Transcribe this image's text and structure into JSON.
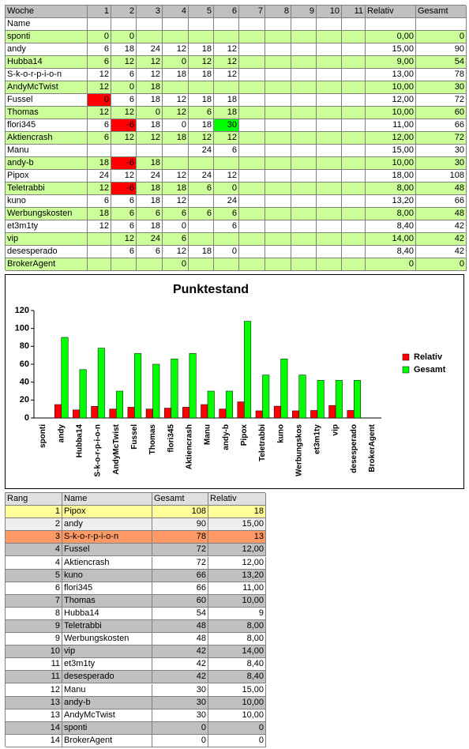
{
  "scores_table": {
    "header": [
      "Woche",
      1,
      2,
      3,
      4,
      5,
      6,
      7,
      8,
      9,
      10,
      11,
      "Relativ",
      "Gesamt"
    ],
    "subheader": "Name",
    "stripe_colors": [
      "#ccff99",
      "#ffffff"
    ],
    "rows": [
      [
        "sponti",
        0,
        0,
        null,
        null,
        null,
        null,
        null,
        null,
        null,
        null,
        null,
        "0,00",
        0
      ],
      [
        "andy",
        6,
        18,
        24,
        12,
        18,
        12,
        null,
        null,
        null,
        null,
        null,
        "15,00",
        90
      ],
      [
        "Hubba14",
        6,
        12,
        12,
        0,
        12,
        12,
        null,
        null,
        null,
        null,
        null,
        "9,00",
        54
      ],
      [
        "S-k-o-r-p-i-o-n",
        12,
        6,
        12,
        18,
        18,
        12,
        null,
        null,
        null,
        null,
        null,
        "13,00",
        78
      ],
      [
        "AndyMcTwist",
        12,
        0,
        18,
        null,
        null,
        null,
        null,
        null,
        null,
        null,
        null,
        "10,00",
        30
      ],
      [
        "Fussel",
        0,
        6,
        18,
        12,
        18,
        18,
        null,
        null,
        null,
        null,
        null,
        "12,00",
        72
      ],
      [
        "Thomas",
        12,
        12,
        0,
        12,
        6,
        18,
        null,
        null,
        null,
        null,
        null,
        "10,00",
        60
      ],
      [
        "flori345",
        6,
        -6,
        18,
        0,
        18,
        30,
        null,
        null,
        null,
        null,
        null,
        "11,00",
        66
      ],
      [
        "Aktiencrash",
        6,
        12,
        12,
        18,
        12,
        12,
        null,
        null,
        null,
        null,
        null,
        "12,00",
        72
      ],
      [
        "Manu",
        null,
        null,
        null,
        null,
        24,
        6,
        null,
        null,
        null,
        null,
        null,
        "15,00",
        30
      ],
      [
        "andy-b",
        18,
        -6,
        18,
        null,
        null,
        null,
        null,
        null,
        null,
        null,
        null,
        "10,00",
        30
      ],
      [
        "Pipox",
        24,
        12,
        24,
        12,
        24,
        12,
        null,
        null,
        null,
        null,
        null,
        "18,00",
        108
      ],
      [
        "Teletrabbi",
        12,
        -6,
        18,
        18,
        6,
        0,
        null,
        null,
        null,
        null,
        null,
        "8,00",
        48
      ],
      [
        "kuno",
        6,
        6,
        18,
        12,
        null,
        24,
        null,
        null,
        null,
        null,
        null,
        "13,20",
        66
      ],
      [
        "Werbungskosten",
        18,
        6,
        6,
        6,
        6,
        6,
        null,
        null,
        null,
        null,
        null,
        "8,00",
        48
      ],
      [
        "et3m1ty",
        12,
        6,
        18,
        0,
        null,
        6,
        null,
        null,
        null,
        null,
        null,
        "8,40",
        42
      ],
      [
        "vip",
        null,
        12,
        24,
        6,
        null,
        null,
        null,
        null,
        null,
        null,
        null,
        "14,00",
        42
      ],
      [
        "desesperado",
        null,
        6,
        6,
        12,
        18,
        0,
        null,
        null,
        null,
        null,
        null,
        "8,40",
        42
      ],
      [
        "BrokerAgent",
        null,
        null,
        null,
        0,
        null,
        null,
        null,
        null,
        null,
        null,
        null,
        "0",
        0
      ]
    ],
    "cell_colors": [
      {
        "row": 5,
        "col": 1,
        "color": "#ff0000"
      },
      {
        "row": 7,
        "col": 2,
        "color": "#ff0000"
      },
      {
        "row": 7,
        "col": 6,
        "color": "#00ff00"
      },
      {
        "row": 10,
        "col": 2,
        "color": "#ff0000"
      },
      {
        "row": 12,
        "col": 2,
        "color": "#ff0000"
      }
    ]
  },
  "chart_data": {
    "type": "bar",
    "title": "Punktestand",
    "categories": [
      "sponti",
      "andy",
      "Hubba14",
      "S-k-o-r-p-i-o-n",
      "AndyMcTwist",
      "Fussel",
      "Thomas",
      "flori345",
      "Aktiencrash",
      "Manu",
      "andy-b",
      "Pipox",
      "Teletrabbi",
      "kuno",
      "Werbungskos",
      "et3m1ty",
      "vip",
      "desesperado",
      "BrokerAgent"
    ],
    "series": [
      {
        "name": "Relativ",
        "color": "#ff0000",
        "values": [
          0,
          15,
          9,
          13,
          10,
          12,
          10,
          11,
          12,
          15,
          10,
          18,
          8,
          13.2,
          8,
          8.4,
          14,
          8.4,
          0
        ]
      },
      {
        "name": "Gesamt",
        "color": "#00ff00",
        "values": [
          0,
          90,
          54,
          78,
          30,
          72,
          60,
          66,
          72,
          30,
          30,
          108,
          48,
          66,
          48,
          42,
          42,
          42,
          0
        ]
      }
    ],
    "ylim": [
      0,
      120
    ],
    "yticks": [
      0,
      20,
      40,
      60,
      80,
      100,
      120
    ],
    "grid": false,
    "legend": "right"
  },
  "ranking_table": {
    "header": [
      "Rang",
      "Name",
      "Gesamt",
      "Relativ"
    ],
    "rows": [
      [
        1,
        "Pipox",
        108,
        "18"
      ],
      [
        2,
        "andy",
        90,
        "15,00"
      ],
      [
        3,
        "S-k-o-r-p-i-o-n",
        78,
        "13"
      ],
      [
        4,
        "Fussel",
        72,
        "12,00"
      ],
      [
        4,
        "Aktiencrash",
        72,
        "12,00"
      ],
      [
        5,
        "kuno",
        66,
        "13,20"
      ],
      [
        6,
        "flori345",
        66,
        "11,00"
      ],
      [
        7,
        "Thomas",
        60,
        "10,00"
      ],
      [
        8,
        "Hubba14",
        54,
        "9"
      ],
      [
        9,
        "Teletrabbi",
        48,
        "8,00"
      ],
      [
        9,
        "Werbungskosten",
        48,
        "8,00"
      ],
      [
        10,
        "vip",
        42,
        "14,00"
      ],
      [
        11,
        "et3m1ty",
        42,
        "8,40"
      ],
      [
        11,
        "desesperado",
        42,
        "8,40"
      ],
      [
        12,
        "Manu",
        30,
        "15,00"
      ],
      [
        13,
        "andy-b",
        30,
        "10,00"
      ],
      [
        13,
        "AndyMcTwist",
        30,
        "10,00"
      ],
      [
        14,
        "sponti",
        0,
        "0"
      ],
      [
        14,
        "BrokerAgent",
        0,
        "0"
      ]
    ],
    "row_colors": [
      "#ffff99",
      "#eeeeee",
      "#ff9966",
      "#c0c0c0",
      "#ffffff",
      "#c0c0c0",
      "#ffffff",
      "#c0c0c0",
      "#ffffff",
      "#c0c0c0",
      "#ffffff",
      "#c0c0c0",
      "#ffffff",
      "#c0c0c0",
      "#ffffff",
      "#c0c0c0",
      "#ffffff",
      "#c0c0c0",
      "#ffffff"
    ]
  }
}
